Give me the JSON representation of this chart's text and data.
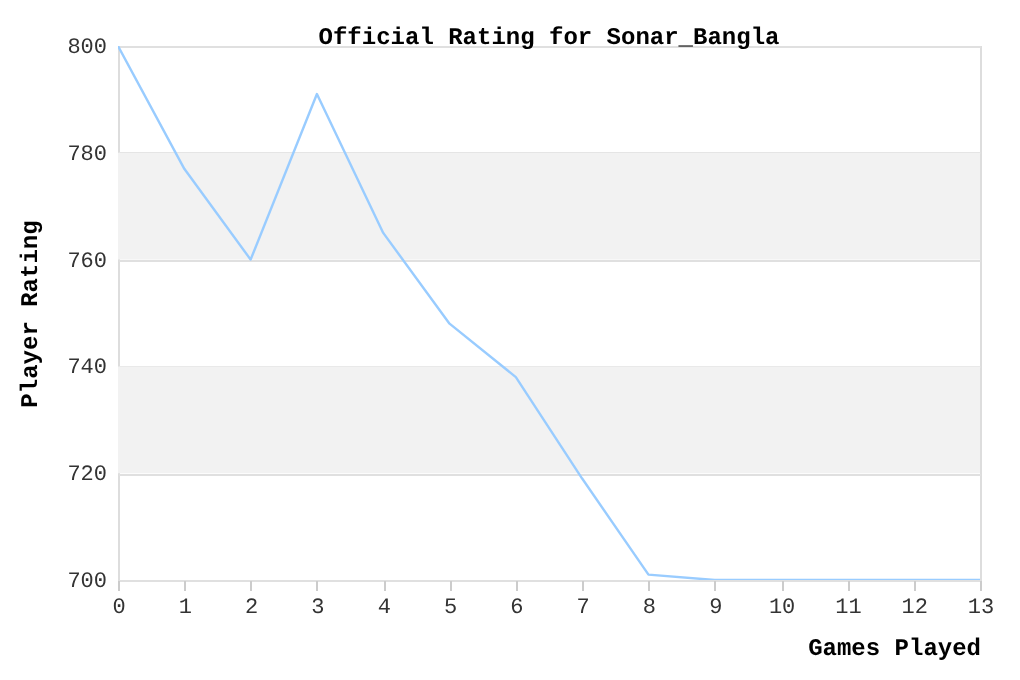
{
  "chart_data": {
    "type": "line",
    "title": "Official Rating for Sonar_Bangla",
    "xlabel": "Games Played",
    "ylabel": "Player Rating",
    "x": [
      0,
      1,
      2,
      3,
      4,
      5,
      6,
      7,
      8,
      9,
      10,
      11,
      12,
      13
    ],
    "series": [
      {
        "color": "#99ccff",
        "values": [
          800,
          777,
          760,
          791,
          765,
          748,
          738,
          719,
          701,
          700,
          700,
          700,
          700,
          700
        ]
      }
    ],
    "xlim": [
      0,
      13
    ],
    "xticks": [
      0,
      1,
      2,
      3,
      4,
      5,
      6,
      7,
      8,
      9,
      10,
      11,
      12,
      13
    ],
    "ylim": [
      700,
      800
    ],
    "yticks": [
      700,
      720,
      740,
      760,
      780,
      800
    ],
    "grid": "y"
  }
}
